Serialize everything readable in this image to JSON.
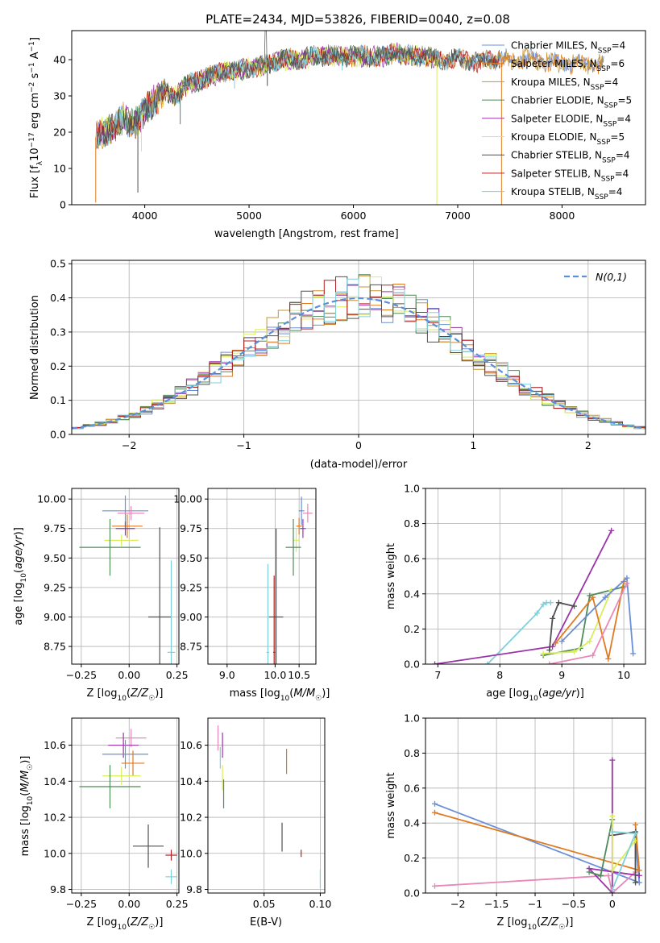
{
  "figure": {
    "title": "PLATE=2434, MJD=53826, FIBERID=0040, z=0.08"
  },
  "colors": {
    "chabrier_miles": "#6a8fd8",
    "salpeter_miles": "#e07a1f",
    "kroupa_miles": "#c8922e",
    "chabrier_elodie": "#4f8a58",
    "salpeter_elodie": "#9b34a8",
    "kroupa_elodie": "#d9ee5a",
    "chabrier_stelib": "#505050",
    "salpeter_stelib": "#b22222",
    "kroupa_stelib": "#80d0da",
    "pink": "#e887b8",
    "normal_curve": "#5b8fd9",
    "grid": "#b0b0b0"
  },
  "chart_data": [
    {
      "id": "spectrum",
      "type": "line",
      "xlabel": "wavelength [Angstrom, rest frame]",
      "ylabel": "Flux [f_λ 10^-17 erg cm^-2 s^-1 A^-1]",
      "xlim": [
        3300,
        8800
      ],
      "ylim": [
        0,
        48
      ],
      "xticks": [
        4000,
        5000,
        6000,
        7000,
        8000
      ],
      "yticks": [
        0,
        10,
        20,
        30,
        40
      ],
      "grid": false,
      "legend_position": "top-right",
      "continuum": {
        "x": [
          3500,
          3600,
          3700,
          3800,
          3900,
          4000,
          4100,
          4200,
          4300,
          4400,
          4500,
          4600,
          4700,
          4800,
          4900,
          5000,
          5100,
          5200,
          5300,
          5400,
          5500,
          5600,
          5700,
          5800,
          5900,
          6000,
          6100,
          6200,
          6300,
          6400,
          6500,
          6600,
          6700,
          6800,
          6900,
          7000,
          7100,
          7200,
          7300,
          7400,
          7500,
          7600,
          7700,
          7800,
          7900,
          8000,
          8100,
          8200,
          8300,
          8400
        ],
        "y": [
          18,
          20,
          21,
          24,
          22,
          26,
          29,
          31,
          30,
          33,
          34,
          35,
          36,
          37,
          37,
          38,
          38,
          39,
          40,
          40,
          40,
          41,
          41,
          41,
          41,
          41,
          41,
          41,
          41,
          42,
          41,
          41,
          41,
          40,
          40,
          40,
          40,
          39,
          40,
          40,
          40,
          40,
          40,
          40,
          39,
          39,
          39,
          39,
          39,
          38
        ]
      },
      "absorption_features": [
        {
          "x": 3530,
          "depth": 18,
          "series": "salpeter_miles"
        },
        {
          "x": 3934,
          "depth": 20,
          "series": "chabrier_stelib"
        },
        {
          "x": 3968,
          "depth": 10,
          "series": "kroupa_elodie"
        },
        {
          "x": 4340,
          "depth": 9,
          "series": "chabrier_elodie"
        },
        {
          "x": 4861,
          "depth": 5,
          "series": "kroupa_stelib"
        },
        {
          "x": 5175,
          "depth": 6,
          "series": "chabrier_stelib"
        },
        {
          "x": 5893,
          "depth": 4,
          "series": "kroupa_stelib"
        },
        {
          "x": 6800,
          "depth": 40,
          "series": "kroupa_elodie"
        },
        {
          "x": 7420,
          "depth": 40,
          "series": "salpeter_miles"
        }
      ],
      "series": [
        {
          "name": "Chabrier MILES, N_SSP=4",
          "key": "chabrier_miles"
        },
        {
          "name": "Salpeter MILES, N_SSP=6",
          "key": "salpeter_miles"
        },
        {
          "name": "Kroupa MILES, N_SSP=4",
          "key": "kroupa_miles"
        },
        {
          "name": "Chabrier ELODIE, N_SSP=5",
          "key": "chabrier_elodie"
        },
        {
          "name": "Salpeter ELODIE, N_SSP=4",
          "key": "salpeter_elodie"
        },
        {
          "name": "Kroupa ELODIE, N_SSP=5",
          "key": "kroupa_elodie"
        },
        {
          "name": "Chabrier STELIB, N_SSP=4",
          "key": "chabrier_stelib"
        },
        {
          "name": "Salpeter STELIB, N_SSP=4",
          "key": "salpeter_stelib"
        },
        {
          "name": "Kroupa STELIB, N_SSP=4",
          "key": "kroupa_stelib"
        }
      ]
    },
    {
      "id": "residuals",
      "type": "area",
      "xlabel": "(data-model)/error",
      "ylabel": "Normed distribution",
      "xlim": [
        -2.5,
        2.5
      ],
      "ylim": [
        0,
        0.51
      ],
      "xticks": [
        -2,
        -1,
        0,
        1,
        2
      ],
      "yticks": [
        0.0,
        0.1,
        0.2,
        0.3,
        0.4,
        0.5
      ],
      "grid": true,
      "legend_position": "top-right",
      "legend": "N(0,1)",
      "bins": {
        "start": -2.5,
        "width": 0.1,
        "count": 50
      },
      "series_keys": [
        "chabrier_miles",
        "salpeter_miles",
        "kroupa_miles",
        "chabrier_elodie",
        "salpeter_elodie",
        "kroupa_elodie",
        "chabrier_stelib",
        "salpeter_stelib",
        "kroupa_stelib"
      ]
    },
    {
      "id": "age_vs_Z",
      "type": "scatter",
      "xlabel": "Z [log10(Z/Z☉)]",
      "ylabel": "age  [log10(age/yr)]",
      "xlim": [
        -0.3,
        0.26
      ],
      "ylim": [
        8.6,
        10.09
      ],
      "xticks": [
        -0.25,
        0.0,
        0.25
      ],
      "yticks": [
        8.75,
        9.0,
        9.25,
        9.5,
        9.75,
        10.0
      ],
      "grid": true,
      "points": [
        {
          "x": -0.02,
          "y": 9.9,
          "xerr": 0.12,
          "yerr": 0.13,
          "c": "chabrier_miles"
        },
        {
          "x": 0.01,
          "y": 9.88,
          "xerr": 0.07,
          "yerr": 0.06,
          "c": "pink"
        },
        {
          "x": -0.01,
          "y": 9.77,
          "xerr": 0.08,
          "yerr": 0.1,
          "c": "salpeter_miles"
        },
        {
          "x": -0.02,
          "y": 9.75,
          "xerr": 0.05,
          "yerr": 0.06,
          "c": "salpeter_elodie"
        },
        {
          "x": -0.04,
          "y": 9.65,
          "xerr": 0.09,
          "yerr": 0.05,
          "c": "kroupa_elodie"
        },
        {
          "x": -0.1,
          "y": 9.59,
          "xerr": 0.16,
          "yerr": 0.24,
          "c": "chabrier_elodie"
        },
        {
          "x": 0.16,
          "y": 9.0,
          "xerr": 0.06,
          "yerr": 0.76,
          "c": "chabrier_stelib"
        },
        {
          "x": 0.22,
          "y": 8.7,
          "xerr": 0.02,
          "yerr": 0.78,
          "c": "kroupa_stelib"
        }
      ]
    },
    {
      "id": "age_vs_mass",
      "type": "scatter",
      "xlabel": "mass [log10(M/M☉)]",
      "xlim": [
        8.6,
        10.85
      ],
      "ylim": [
        8.6,
        10.09
      ],
      "xticks": [
        9.0,
        10.0,
        10.5
      ],
      "yticks": [
        8.75,
        9.0,
        9.25,
        9.5,
        9.75,
        10.0
      ],
      "grid": true,
      "points": [
        {
          "x": 10.55,
          "y": 9.9,
          "xerr": 0.06,
          "yerr": 0.12,
          "c": "chabrier_miles"
        },
        {
          "x": 10.68,
          "y": 9.88,
          "xerr": 0.1,
          "yerr": 0.08,
          "c": "pink"
        },
        {
          "x": 10.5,
          "y": 9.77,
          "xerr": 0.06,
          "yerr": 0.07,
          "c": "salpeter_miles"
        },
        {
          "x": 10.58,
          "y": 9.75,
          "xerr": 0.06,
          "yerr": 0.08,
          "c": "salpeter_elodie"
        },
        {
          "x": 10.44,
          "y": 9.65,
          "xerr": 0.06,
          "yerr": 0.1,
          "c": "kroupa_elodie"
        },
        {
          "x": 10.38,
          "y": 9.59,
          "xerr": 0.16,
          "yerr": 0.24,
          "c": "chabrier_elodie"
        },
        {
          "x": 10.02,
          "y": 9.0,
          "xerr": 0.15,
          "yerr": 0.75,
          "c": "chabrier_stelib"
        },
        {
          "x": 9.98,
          "y": 8.7,
          "xerr": 0.02,
          "yerr": 0.65,
          "c": "salpeter_stelib"
        },
        {
          "x": 9.85,
          "y": 8.7,
          "xerr": 0.03,
          "yerr": 0.75,
          "c": "kroupa_stelib"
        }
      ]
    },
    {
      "id": "massweight_vs_age",
      "type": "line",
      "xlabel": "age  [log10(age/yr)]",
      "ylabel": "mass weight",
      "xlim": [
        6.8,
        10.35
      ],
      "ylim": [
        0,
        1.0
      ],
      "xticks": [
        7,
        8,
        9,
        10
      ],
      "yticks": [
        0.0,
        0.2,
        0.4,
        0.6,
        0.8,
        1.0
      ],
      "grid": true,
      "series": [
        {
          "c": "kroupa_stelib",
          "pts": [
            [
              7.8,
              0.0
            ],
            [
              8.6,
              0.29
            ],
            [
              8.7,
              0.34
            ],
            [
              8.75,
              0.35
            ],
            [
              8.82,
              0.35
            ]
          ]
        },
        {
          "c": "salpeter_elodie",
          "pts": [
            [
              6.95,
              0.0
            ],
            [
              8.85,
              0.1
            ],
            [
              9.8,
              0.76
            ]
          ]
        },
        {
          "c": "chabrier_stelib",
          "pts": [
            [
              8.8,
              0.08
            ],
            [
              8.85,
              0.26
            ],
            [
              8.95,
              0.35
            ],
            [
              9.2,
              0.33
            ]
          ]
        },
        {
          "c": "chabrier_elodie",
          "pts": [
            [
              8.7,
              0.05
            ],
            [
              9.3,
              0.09
            ],
            [
              9.45,
              0.39
            ],
            [
              10.0,
              0.44
            ]
          ]
        },
        {
          "c": "kroupa_elodie",
          "pts": [
            [
              8.7,
              0.06
            ],
            [
              9.2,
              0.07
            ],
            [
              9.45,
              0.13
            ],
            [
              9.8,
              0.42
            ]
          ]
        },
        {
          "c": "salpeter_miles",
          "pts": [
            [
              8.9,
              0.12
            ],
            [
              9.5,
              0.38
            ],
            [
              9.75,
              0.03
            ],
            [
              10.0,
              0.47
            ]
          ]
        },
        {
          "c": "chabrier_miles",
          "pts": [
            [
              9.0,
              0.13
            ],
            [
              9.7,
              0.38
            ],
            [
              10.05,
              0.49
            ],
            [
              10.15,
              0.06
            ]
          ]
        },
        {
          "c": "pink",
          "pts": [
            [
              8.8,
              0.0
            ],
            [
              9.5,
              0.05
            ],
            [
              10.05,
              0.46
            ]
          ]
        }
      ]
    },
    {
      "id": "mass_vs_Z",
      "type": "scatter",
      "xlabel": "Z [log10(Z/Z☉)]",
      "ylabel": "mass [log10(M/M☉)]",
      "xlim": [
        -0.3,
        0.26
      ],
      "ylim": [
        9.78,
        10.75
      ],
      "xticks": [
        -0.25,
        0.0,
        0.25
      ],
      "yticks": [
        9.8,
        10.0,
        10.2,
        10.4,
        10.6
      ],
      "grid": true,
      "points": [
        {
          "x": 0.01,
          "y": 10.64,
          "xerr": 0.08,
          "yerr": 0.05,
          "c": "pink"
        },
        {
          "x": -0.03,
          "y": 10.6,
          "xerr": 0.08,
          "yerr": 0.07,
          "c": "salpeter_elodie"
        },
        {
          "x": -0.02,
          "y": 10.55,
          "xerr": 0.12,
          "yerr": 0.08,
          "c": "chabrier_miles"
        },
        {
          "x": 0.02,
          "y": 10.5,
          "xerr": 0.06,
          "yerr": 0.07,
          "c": "salpeter_miles"
        },
        {
          "x": -0.04,
          "y": 10.43,
          "xerr": 0.1,
          "yerr": 0.05,
          "c": "kroupa_elodie"
        },
        {
          "x": -0.1,
          "y": 10.37,
          "xerr": 0.16,
          "yerr": 0.12,
          "c": "chabrier_elodie"
        },
        {
          "x": 0.1,
          "y": 10.04,
          "xerr": 0.08,
          "yerr": 0.12,
          "c": "chabrier_stelib"
        },
        {
          "x": 0.22,
          "y": 9.99,
          "xerr": 0.03,
          "yerr": 0.03,
          "c": "salpeter_stelib"
        },
        {
          "x": 0.22,
          "y": 9.87,
          "xerr": 0.03,
          "yerr": 0.04,
          "c": "kroupa_stelib"
        }
      ]
    },
    {
      "id": "mass_vs_ebv",
      "type": "scatter",
      "xlabel": "E(B-V)",
      "xlim": [
        0.0,
        0.104
      ],
      "ylim": [
        9.78,
        10.75
      ],
      "xticks": [
        0.05,
        0.1
      ],
      "yticks": [
        9.8,
        10.0,
        10.2,
        10.4,
        10.6
      ],
      "grid": true,
      "points": [
        {
          "x": 0.009,
          "y": 10.64,
          "xerr": 0,
          "yerr": 0.07,
          "c": "pink"
        },
        {
          "x": 0.013,
          "y": 10.6,
          "xerr": 0,
          "yerr": 0.07,
          "c": "salpeter_elodie"
        },
        {
          "x": 0.011,
          "y": 10.53,
          "xerr": 0,
          "yerr": 0.06,
          "c": "kroupa_stelib"
        },
        {
          "x": 0.013,
          "y": 10.42,
          "xerr": 0,
          "yerr": 0.07,
          "c": "kroupa_elodie"
        },
        {
          "x": 0.014,
          "y": 10.33,
          "xerr": 0,
          "yerr": 0.08,
          "c": "chabrier_elodie"
        },
        {
          "x": 0.07,
          "y": 10.51,
          "xerr": 0,
          "yerr": 0.07,
          "c": "salpeter_miles"
        },
        {
          "x": 0.066,
          "y": 10.09,
          "xerr": 0,
          "yerr": 0.08,
          "c": "chabrier_stelib"
        },
        {
          "x": 0.083,
          "y": 10.0,
          "xerr": 0,
          "yerr": 0.02,
          "c": "salpeter_stelib"
        },
        {
          "x": 0.1,
          "y": 9.86,
          "xerr": 0,
          "yerr": 0.05,
          "c": "kroupa_stelib"
        }
      ]
    },
    {
      "id": "massweight_vs_Z",
      "type": "line",
      "xlabel": "Z [log10(Z/Z☉)]",
      "ylabel": "mass weight",
      "xlim": [
        -2.42,
        0.43
      ],
      "ylim": [
        0,
        1.0
      ],
      "xticks": [
        -2.0,
        -1.5,
        -1.0,
        -0.5,
        0.0
      ],
      "yticks": [
        0.0,
        0.2,
        0.4,
        0.6,
        0.8,
        1.0
      ],
      "grid": true,
      "series": [
        {
          "c": "chabrier_miles",
          "pts": [
            [
              -2.3,
              0.51
            ],
            [
              0.35,
              0.06
            ],
            [
              0.3,
              0.3
            ]
          ]
        },
        {
          "c": "salpeter_miles",
          "pts": [
            [
              -2.3,
              0.46
            ],
            [
              0.35,
              0.13
            ],
            [
              0.3,
              0.39
            ]
          ]
        },
        {
          "c": "pink",
          "pts": [
            [
              -2.3,
              0.04
            ],
            [
              -0.05,
              0.1
            ],
            [
              0.0,
              0.0
            ],
            [
              0.3,
              0.12
            ]
          ]
        },
        {
          "c": "salpeter_elodie",
          "pts": [
            [
              0.0,
              0.76
            ],
            [
              0.0,
              0.0
            ],
            [
              -0.3,
              0.14
            ],
            [
              0.35,
              0.1
            ]
          ]
        },
        {
          "c": "chabrier_stelib",
          "pts": [
            [
              0.0,
              0.33
            ],
            [
              0.3,
              0.35
            ],
            [
              0.3,
              0.06
            ]
          ]
        },
        {
          "c": "chabrier_elodie",
          "pts": [
            [
              -0.3,
              0.12
            ],
            [
              -0.15,
              0.1
            ],
            [
              0.0,
              0.42
            ]
          ]
        },
        {
          "c": "kroupa_elodie",
          "pts": [
            [
              0.0,
              0.44
            ],
            [
              0.0,
              0.13
            ],
            [
              0.3,
              0.3
            ]
          ]
        },
        {
          "c": "kroupa_stelib",
          "pts": [
            [
              0.0,
              0.02
            ],
            [
              0.3,
              0.34
            ],
            [
              0.0,
              0.35
            ]
          ]
        }
      ]
    }
  ]
}
